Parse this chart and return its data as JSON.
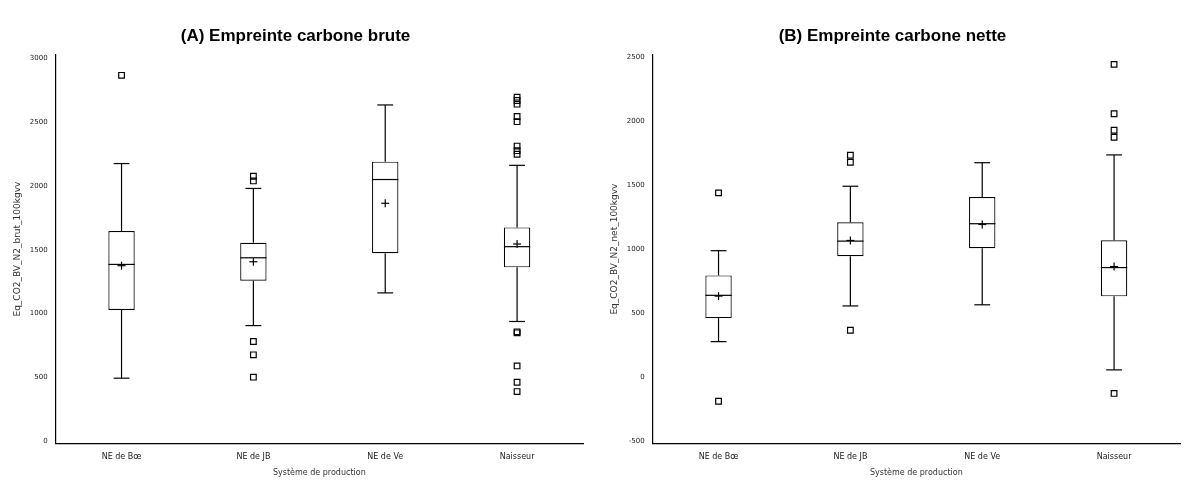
{
  "chart_data": [
    {
      "type": "box",
      "title": "(A) Empreinte carbone brute",
      "xlabel": "Système de production",
      "ylabel": "Eq_CO2_BV_N2_brut_100kgvv",
      "categories": [
        "NE de Bœ",
        "NE de JB",
        "NE de Ve",
        "Naisseur"
      ],
      "ylim": [
        -20,
        3030
      ],
      "yticks": [
        0,
        500,
        1000,
        1500,
        2000,
        2500,
        3000
      ],
      "grid": false,
      "legend": false,
      "marker": "square",
      "boxes": [
        {
          "low": 494,
          "q1": 1028,
          "median": 1385,
          "q3": 1647,
          "high": 2175,
          "mean": 1375,
          "outliers": [
            2866
          ]
        },
        {
          "low": 906,
          "q1": 1257,
          "median": 1437,
          "q3": 1554,
          "high": 1980,
          "mean": 1406,
          "outliers": [
            2076,
            2039,
            781,
            677,
            502
          ]
        },
        {
          "low": 1162,
          "q1": 1472,
          "median": 2050,
          "q3": 2190,
          "high": 2634,
          "mean": 1864
        },
        {
          "low": 938,
          "q1": 1362,
          "median": 1524,
          "q3": 1675,
          "high": 2161,
          "mean": 1545,
          "outliers": [
            2695,
            2669,
            2640,
            2544,
            2503,
            2312,
            2276,
            2248,
            857,
            849,
            590,
            462,
            389
          ]
        }
      ]
    },
    {
      "type": "box",
      "title": "(B) Empreinte carbone nette",
      "xlabel": "Système de production",
      "ylabel": "Eq_CO2_BV_N2_net_100kgvv",
      "categories": [
        "NE de Bœ",
        "NE de JB",
        "NE de Ve",
        "Naisseur"
      ],
      "ylim": [
        -520,
        2525
      ],
      "yticks": [
        -500,
        0,
        500,
        1000,
        1500,
        2000,
        2500
      ],
      "grid": false,
      "legend": false,
      "marker": "square",
      "boxes": [
        {
          "low": 279,
          "q1": 463,
          "median": 641,
          "q3": 797,
          "high": 990,
          "mean": 635,
          "outliers": [
            1442,
            -187
          ]
        },
        {
          "low": 558,
          "q1": 947,
          "median": 1065,
          "q3": 1212,
          "high": 1494,
          "mean": 1070,
          "outliers": [
            1736,
            1681,
            368
          ]
        },
        {
          "low": 567,
          "q1": 1010,
          "median": 1201,
          "q3": 1410,
          "high": 1678,
          "mean": 1195
        },
        {
          "low": 58,
          "q1": 633,
          "median": 858,
          "q3": 1071,
          "high": 1739,
          "mean": 866,
          "outliers": [
            2447,
            2061,
            1932,
            1877,
            -126
          ]
        }
      ]
    }
  ]
}
